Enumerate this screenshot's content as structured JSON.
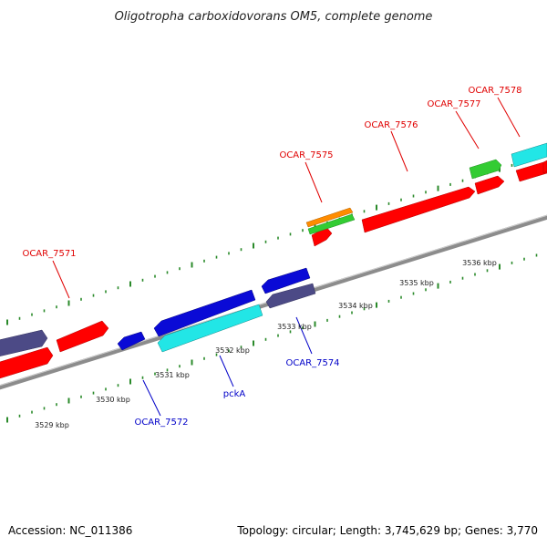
{
  "title": "Oligotropha carboxidovorans OM5, complete genome",
  "footer": {
    "accession": "Accession: NC_011386",
    "summary": "Topology: circular; Length: 3,745,629 bp; Genes: 3,770"
  },
  "colors": {
    "forward_label": "#e00000",
    "reverse_label": "#0000c8",
    "tick": "#2a8a2a",
    "backbone": "#8c8c8c",
    "red": "#ff0000",
    "blue": "#0a0ad6",
    "cyan": "#22e6e6",
    "slate": "#4c4a86",
    "green": "#33cc33",
    "orange": "#ff8c00"
  },
  "scale_labels": [
    {
      "text": "3529 kbp",
      "kbp": 3529
    },
    {
      "text": "3530 kbp",
      "kbp": 3530
    },
    {
      "text": "3531 kbp",
      "kbp": 3531
    },
    {
      "text": "3532 kbp",
      "kbp": 3532
    },
    {
      "text": "3533 kbp",
      "kbp": 3533
    },
    {
      "text": "3534 kbp",
      "kbp": 3534
    },
    {
      "text": "3535 kbp",
      "kbp": 3535
    },
    {
      "text": "3536 kbp",
      "kbp": 3536
    }
  ],
  "gene_labels": [
    {
      "text": "OCAR_7571",
      "strand": "forward"
    },
    {
      "text": "OCAR_7575",
      "strand": "forward"
    },
    {
      "text": "OCAR_7576",
      "strand": "forward"
    },
    {
      "text": "OCAR_7577",
      "strand": "forward"
    },
    {
      "text": "OCAR_7578",
      "strand": "forward"
    },
    {
      "text": "OCAR_7572",
      "strand": "reverse"
    },
    {
      "text": "pckA",
      "strand": "reverse"
    },
    {
      "text": "OCAR_7574",
      "strand": "reverse"
    }
  ]
}
